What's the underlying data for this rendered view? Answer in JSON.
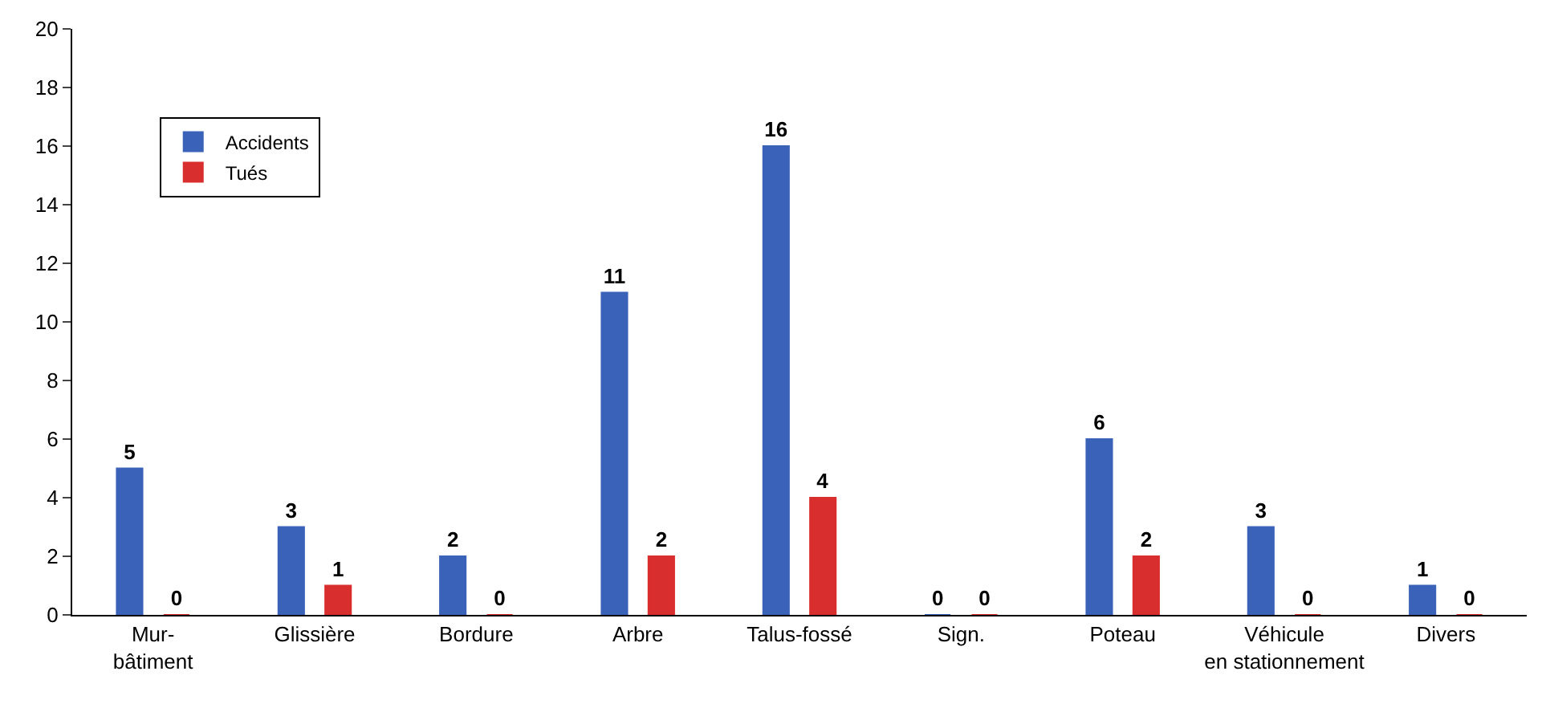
{
  "chart_data": {
    "type": "bar",
    "categories": [
      "Mur-\nbâtiment",
      "Glissière",
      "Bordure",
      "Arbre",
      "Talus-fossé",
      "Sign.",
      "Poteau",
      "Véhicule\nen stationnement",
      "Divers"
    ],
    "series": [
      {
        "name": "Accidents",
        "color": "#3a62b8",
        "values": [
          5,
          3,
          2,
          11,
          16,
          0,
          6,
          3,
          1
        ]
      },
      {
        "name": "Tués",
        "color": "#d92e2e",
        "values": [
          0,
          1,
          0,
          2,
          4,
          0,
          2,
          0,
          0
        ]
      }
    ],
    "ylim": [
      0,
      20
    ],
    "yticks": [
      0,
      2,
      4,
      6,
      8,
      10,
      12,
      14,
      16,
      18,
      20
    ],
    "grid": false,
    "legend": "top left",
    "data_labels": true
  }
}
